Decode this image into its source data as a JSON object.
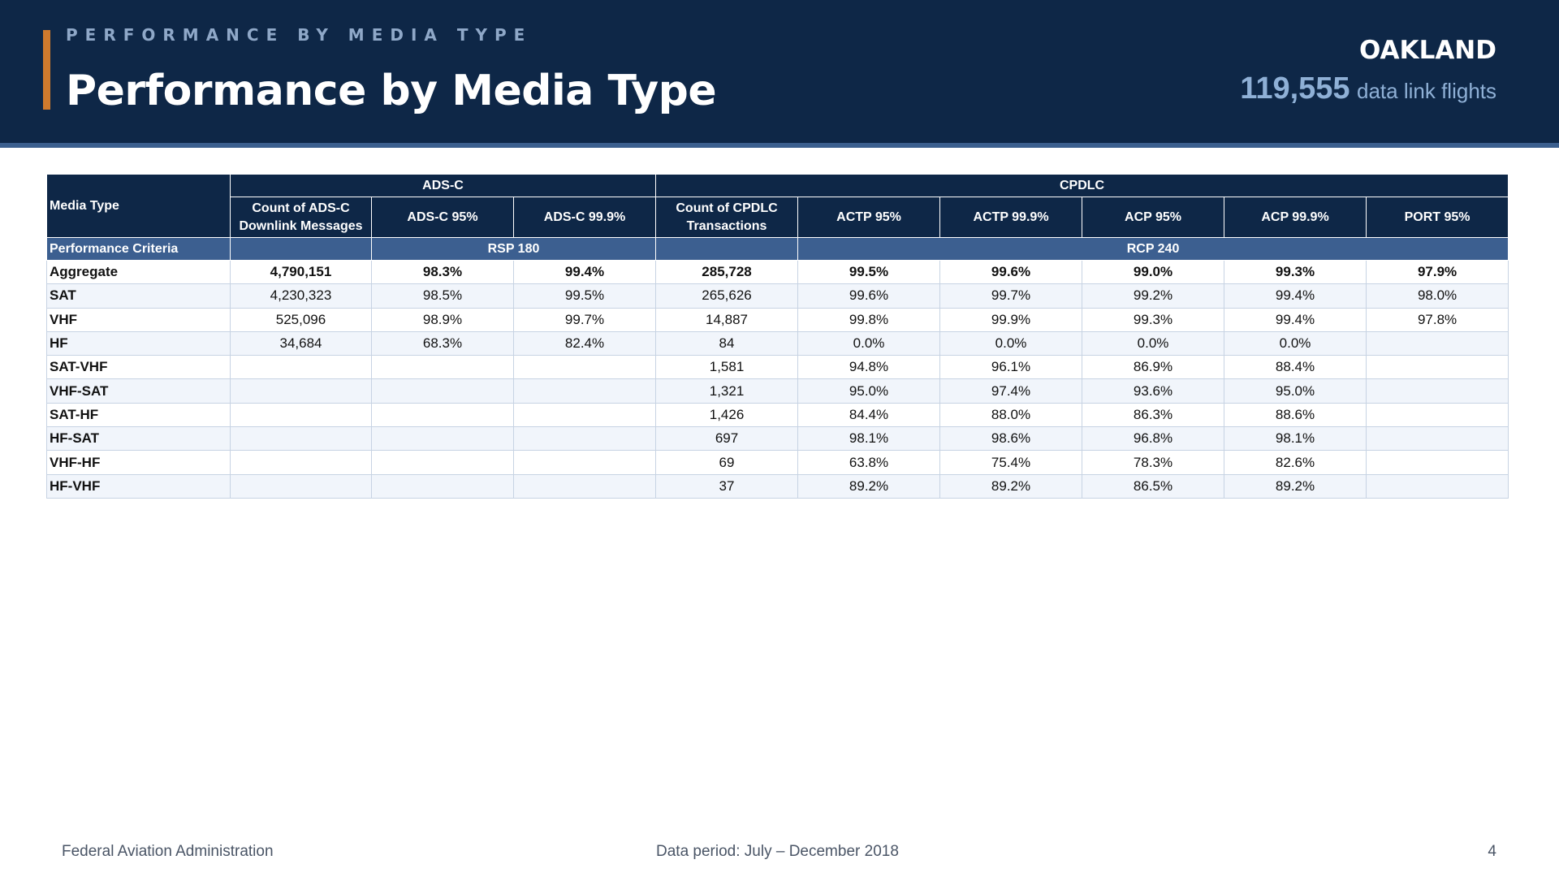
{
  "header": {
    "kicker": "PERFORMANCE BY MEDIA TYPE",
    "title": "Performance by Media Type",
    "region": "OAKLAND",
    "flights_count": "119,555",
    "flights_label": "data link flights",
    "accent_color": "#cf7a2d",
    "background_color": "#0e2747"
  },
  "table": {
    "media_type_header": "Media Type",
    "group_headers": [
      "ADS-C",
      "CPDLC"
    ],
    "column_headers": [
      "Count of ADS-C Downlink Messages",
      "ADS-C 95%",
      "ADS-C 99.9%",
      "Count of CPDLC Transactions",
      "ACTP 95%",
      "ACTP 99.9%",
      "ACP 95%",
      "ACP 99.9%",
      "PORT 95%"
    ],
    "criteria": {
      "label": "Performance Criteria",
      "adsc": "RSP 180",
      "cpdlc": "RCP 240"
    },
    "rows": [
      {
        "media": "Aggregate",
        "cells": [
          "4,790,151",
          "98.3%",
          "99.4%",
          "285,728",
          "99.5%",
          "99.6%",
          "99.0%",
          "99.3%",
          "97.9%"
        ]
      },
      {
        "media": "SAT",
        "cells": [
          "4,230,323",
          "98.5%",
          "99.5%",
          "265,626",
          "99.6%",
          "99.7%",
          "99.2%",
          "99.4%",
          "98.0%"
        ]
      },
      {
        "media": "VHF",
        "cells": [
          "525,096",
          "98.9%",
          "99.7%",
          "14,887",
          "99.8%",
          "99.9%",
          "99.3%",
          "99.4%",
          "97.8%"
        ]
      },
      {
        "media": "HF",
        "cells": [
          "34,684",
          "68.3%",
          "82.4%",
          "84",
          "0.0%",
          "0.0%",
          "0.0%",
          "0.0%",
          ""
        ]
      },
      {
        "media": "SAT-VHF",
        "cells": [
          "",
          "",
          "",
          "1,581",
          "94.8%",
          "96.1%",
          "86.9%",
          "88.4%",
          ""
        ]
      },
      {
        "media": "VHF-SAT",
        "cells": [
          "",
          "",
          "",
          "1,321",
          "95.0%",
          "97.4%",
          "93.6%",
          "95.0%",
          ""
        ]
      },
      {
        "media": "SAT-HF",
        "cells": [
          "",
          "",
          "",
          "1,426",
          "84.4%",
          "88.0%",
          "86.3%",
          "88.6%",
          ""
        ]
      },
      {
        "media": "HF-SAT",
        "cells": [
          "",
          "",
          "",
          "697",
          "98.1%",
          "98.6%",
          "96.8%",
          "98.1%",
          ""
        ]
      },
      {
        "media": "VHF-HF",
        "cells": [
          "",
          "",
          "",
          "69",
          "63.8%",
          "75.4%",
          "78.3%",
          "82.6%",
          ""
        ]
      },
      {
        "media": "HF-VHF",
        "cells": [
          "",
          "",
          "",
          "37",
          "89.2%",
          "89.2%",
          "86.5%",
          "89.2%",
          ""
        ]
      }
    ]
  },
  "footer": {
    "organization": "Federal Aviation Administration",
    "data_period": "Data period: July – December 2018",
    "page_number": "4"
  }
}
